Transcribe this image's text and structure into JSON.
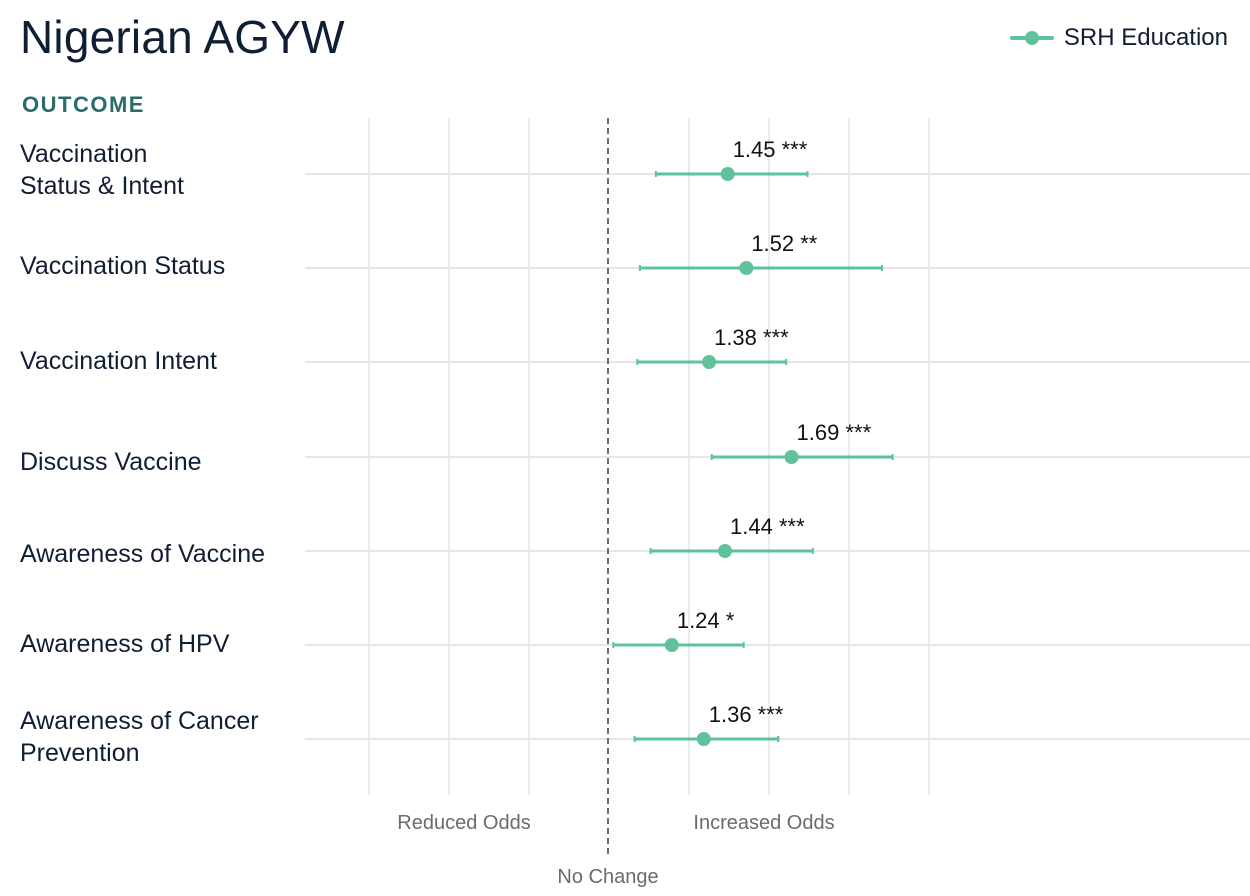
{
  "chart_data": {
    "type": "forest",
    "title": "Nigerian AGYW",
    "y_header": "OUTCOME",
    "legend": [
      {
        "name": "SRH Education",
        "color": "#5fc29a"
      }
    ],
    "series": [
      {
        "name": "SRH Education",
        "color": "#5fc29a",
        "points": [
          {
            "outcome": "Vaccination\nStatus & Intent",
            "estimate": 1.45,
            "ci_low": 1.18,
            "ci_high": 1.75,
            "label": "1.45 ***"
          },
          {
            "outcome": "Vaccination Status",
            "estimate": 1.52,
            "ci_low": 1.12,
            "ci_high": 2.03,
            "label": "1.52 **"
          },
          {
            "outcome": "Vaccination Intent",
            "estimate": 1.38,
            "ci_low": 1.11,
            "ci_high": 1.67,
            "label": "1.38 ***"
          },
          {
            "outcome": "Discuss Vaccine",
            "estimate": 1.69,
            "ci_low": 1.39,
            "ci_high": 2.07,
            "label": "1.69 ***"
          },
          {
            "outcome": "Awareness of Vaccine",
            "estimate": 1.44,
            "ci_low": 1.16,
            "ci_high": 1.77,
            "label": "1.44 ***"
          },
          {
            "outcome": "Awareness of HPV",
            "estimate": 1.24,
            "ci_low": 1.02,
            "ci_high": 1.51,
            "label": "1.24 *"
          },
          {
            "outcome": "Awareness of Cancer\nPrevention",
            "estimate": 1.36,
            "ci_low": 1.1,
            "ci_high": 1.64,
            "label": "1.36 ***"
          }
        ]
      }
    ],
    "x_reference": 1,
    "x_reference_label": "No Change",
    "x_region_labels": {
      "left": "Reduced Odds",
      "right": "Increased Odds"
    },
    "grid": true
  }
}
